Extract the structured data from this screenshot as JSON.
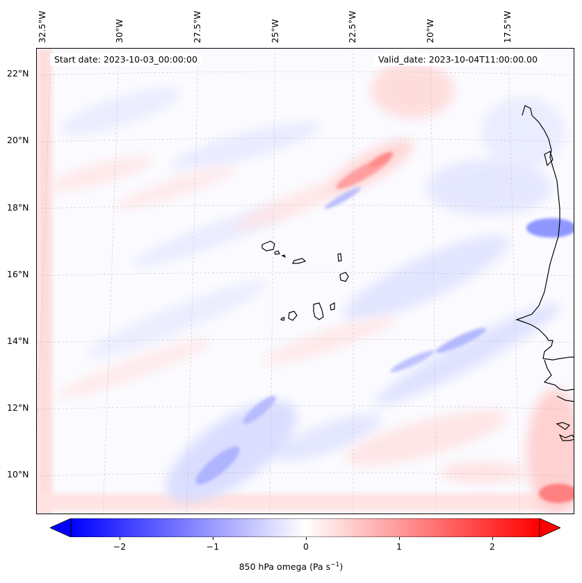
{
  "header": {
    "start_date": "Start date: 2023-10-03_00:00:00",
    "valid_date": "Valid_date: 2023-10-04T11:00:00.00"
  },
  "axes": {
    "lon_labels": [
      "32.5°W",
      "30°W",
      "27.5°W",
      "25°W",
      "22.5°W",
      "20°W",
      "17.5°W"
    ],
    "lat_labels": [
      "22°N",
      "20°N",
      "18°N",
      "16°N",
      "14°N",
      "12°N",
      "10°N"
    ]
  },
  "colorbar": {
    "ticks": [
      "−2",
      "−1",
      "0",
      "1",
      "2"
    ],
    "range": [
      -2.5,
      2.5
    ],
    "label_main": "850 hPa omega (Pa s",
    "label_sup": "−1",
    "label_end": ")",
    "colors": {
      "negative": "#0000ff",
      "zero": "#ffffff",
      "positive": "#ff0000"
    }
  },
  "map": {
    "projection": "lambert-conformal",
    "extent_lon": [
      -33,
      -16
    ],
    "extent_lat": [
      9,
      23
    ],
    "coastline_color": "#000000",
    "gridlines": "dashed-grey"
  }
}
